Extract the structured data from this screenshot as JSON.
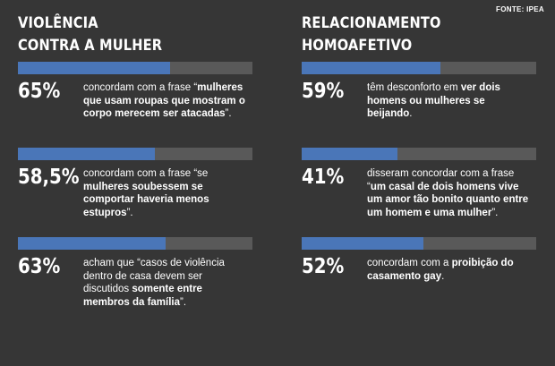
{
  "source": "FONTE: IPEA",
  "colors": {
    "background": "#363636",
    "bar_fill": "#4a76b8",
    "bar_track": "#595959"
  },
  "left": {
    "title_line1": "VIOLÊNCIA",
    "title_line2": "CONTRA A MULHER",
    "stats": [
      {
        "percent_label": "65%",
        "fill_fraction": 0.65,
        "text": [
          {
            "t": "concordam com a frase “",
            "b": false
          },
          {
            "t": "mulheres que usam roupas que mostram o corpo merecem ser atacadas",
            "b": true
          },
          {
            "t": "”.",
            "b": false
          }
        ]
      },
      {
        "percent_label": "58,5%",
        "fill_fraction": 0.585,
        "text": [
          {
            "t": "concordam com a frase “se ",
            "b": false
          },
          {
            "t": "mulheres soubessem se comportar haveria menos estupros",
            "b": true
          },
          {
            "t": "”.",
            "b": false
          }
        ]
      },
      {
        "percent_label": "63%",
        "fill_fraction": 0.63,
        "text": [
          {
            "t": "acham que “casos de violência dentro de casa devem ser discutidos ",
            "b": false
          },
          {
            "t": "somente entre membros da família",
            "b": true
          },
          {
            "t": "”.",
            "b": false
          }
        ]
      }
    ]
  },
  "right": {
    "title_line1": "RELACIONAMENTO",
    "title_line2": "HOMOAFETIVO",
    "stats": [
      {
        "percent_label": "59%",
        "fill_fraction": 0.59,
        "text": [
          {
            "t": "têm desconforto em ",
            "b": false
          },
          {
            "t": "ver dois homens ou mulheres se beijando",
            "b": true
          },
          {
            "t": ".",
            "b": false
          }
        ]
      },
      {
        "percent_label": "41%",
        "fill_fraction": 0.41,
        "text": [
          {
            "t": "disseram concordar com a frase “",
            "b": false
          },
          {
            "t": "um casal de dois homens vive um amor tão bonito quanto entre um homem e uma mulher",
            "b": true
          },
          {
            "t": "”.",
            "b": false
          }
        ]
      },
      {
        "percent_label": "52%",
        "fill_fraction": 0.52,
        "text": [
          {
            "t": "concordam com a ",
            "b": false
          },
          {
            "t": "proibição do casamento gay",
            "b": true
          },
          {
            "t": ".",
            "b": false
          }
        ]
      }
    ]
  }
}
